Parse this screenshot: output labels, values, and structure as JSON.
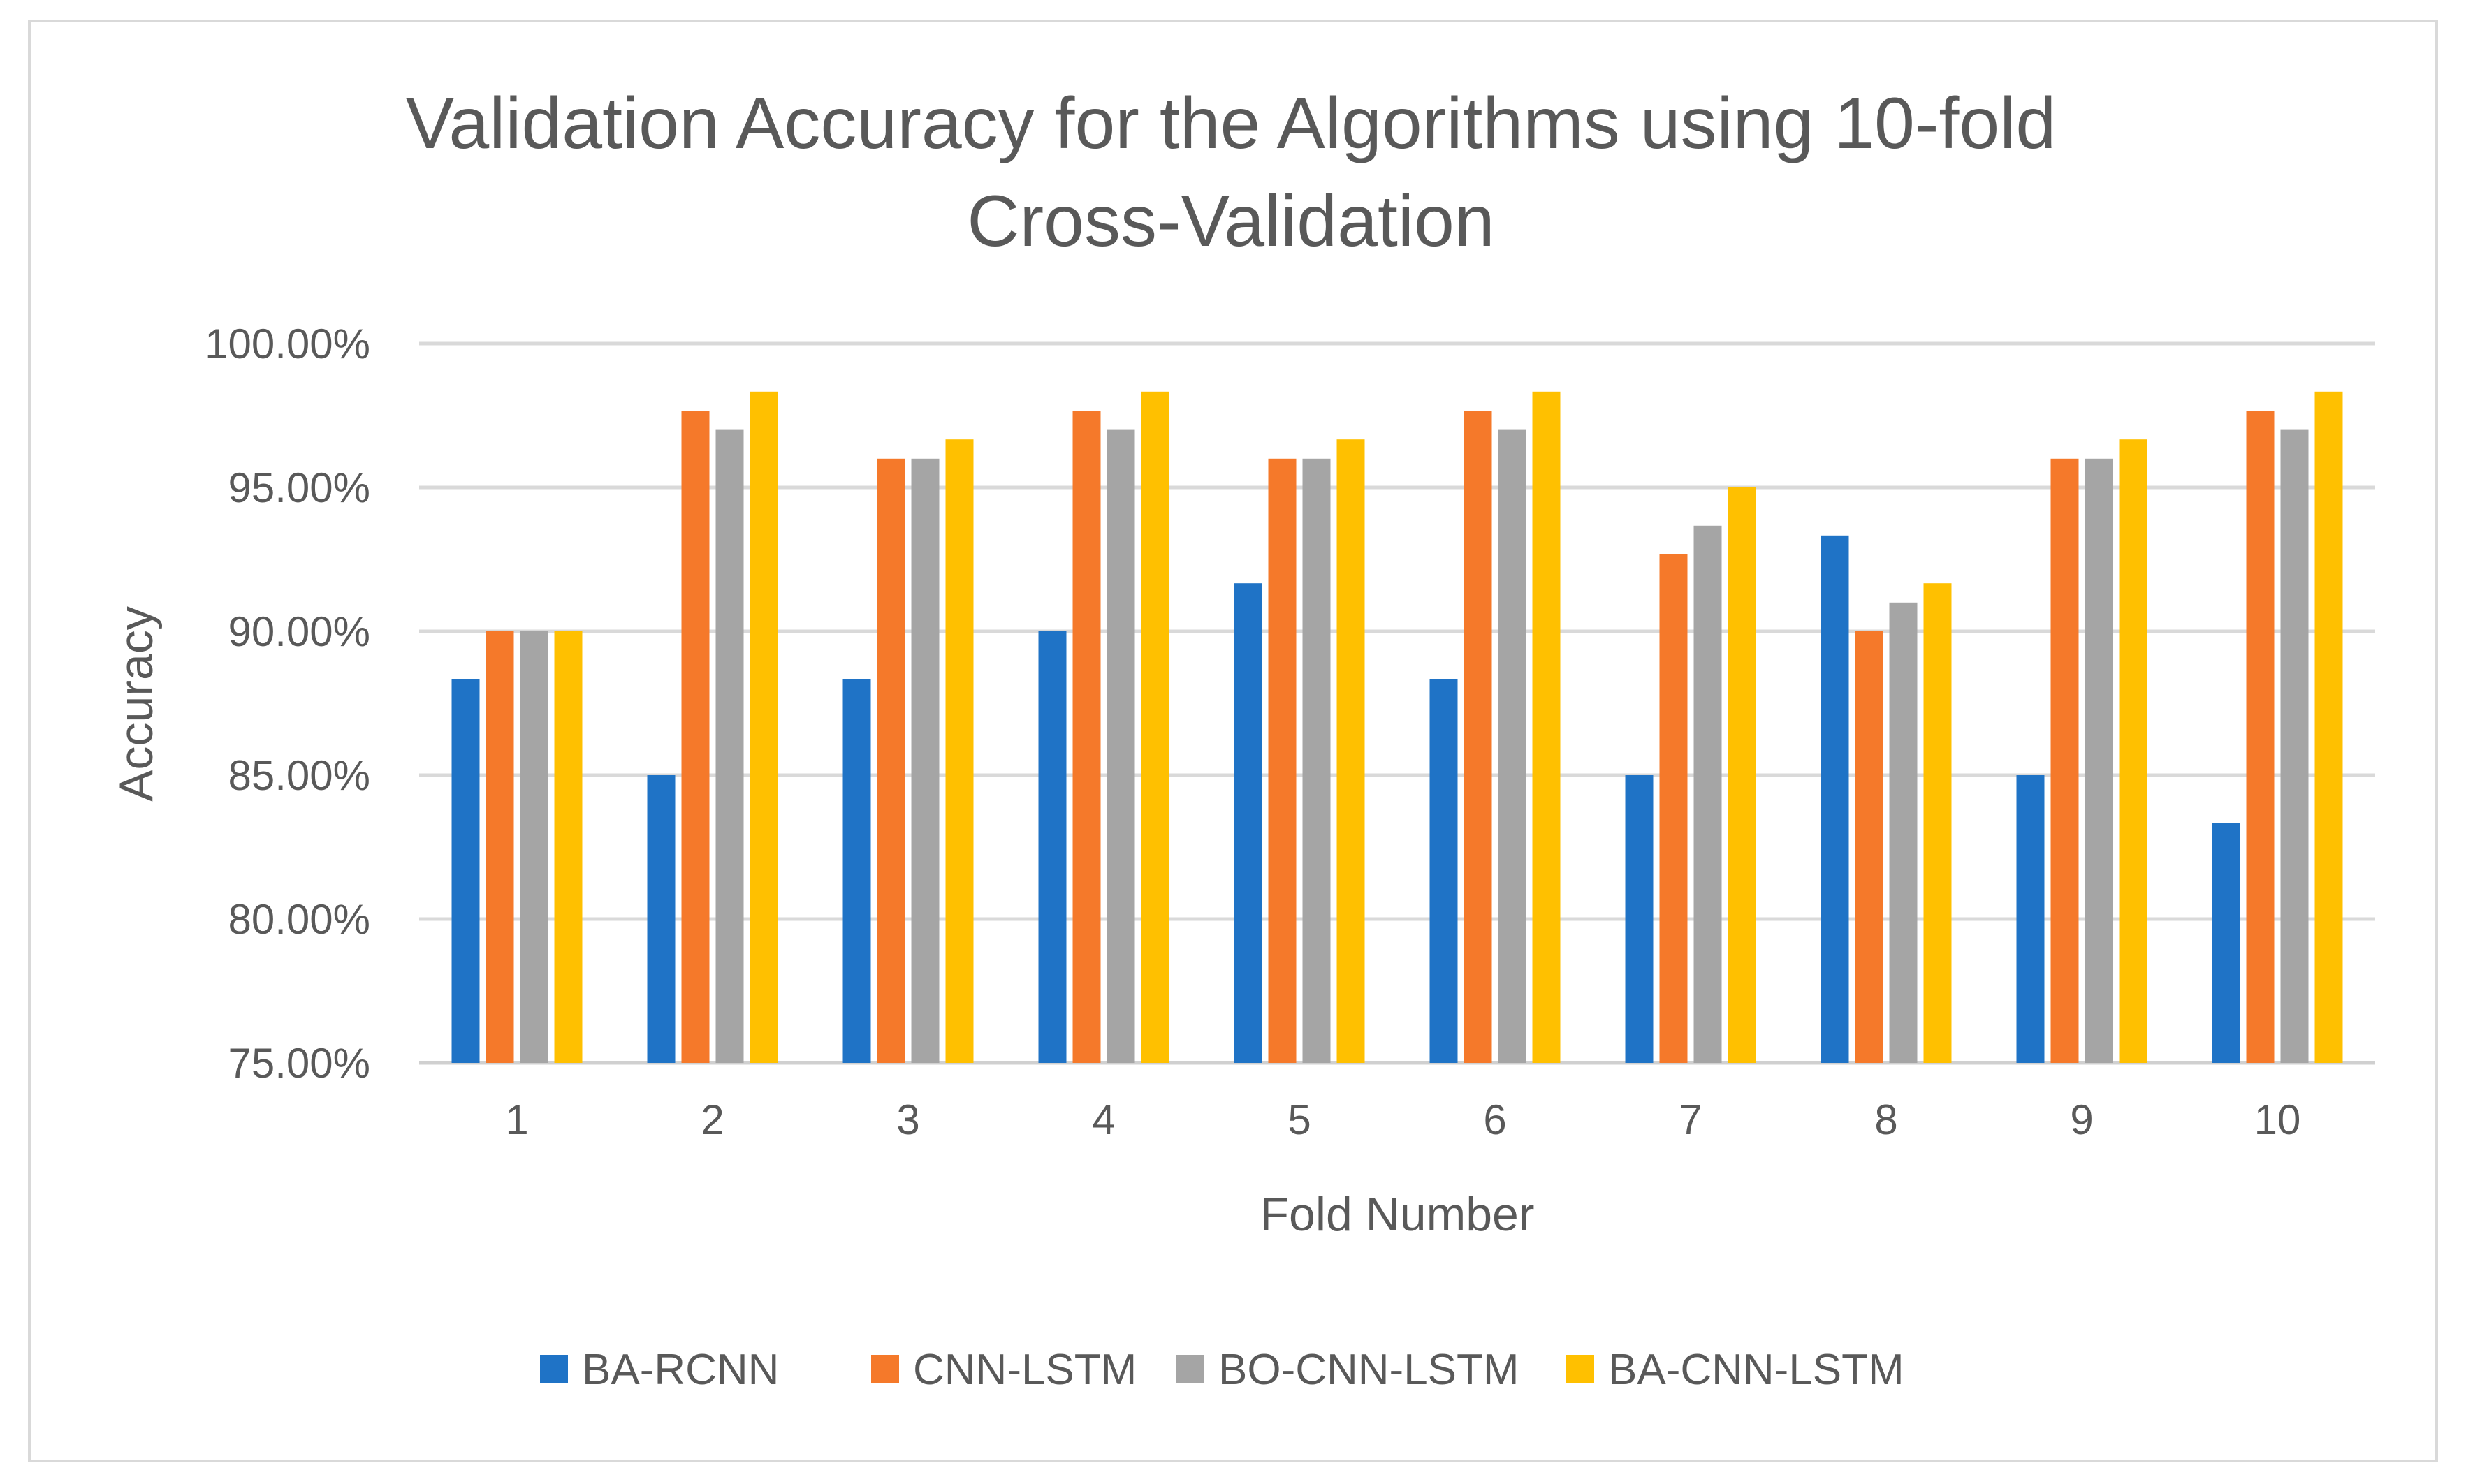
{
  "chart_data": {
    "type": "bar",
    "title": "Validation Accuracy for the Algorithms using 10-fold Cross-Validation",
    "title_lines": [
      "Validation Accuracy for the Algorithms using 10-fold",
      "Cross-Validation"
    ],
    "xlabel": "Fold Number",
    "ylabel": "Accuracy",
    "ylim": [
      75,
      100
    ],
    "ytick_values": [
      75,
      80,
      85,
      90,
      95,
      100
    ],
    "ytick_labels": [
      "75.00%",
      "80.00%",
      "85.00%",
      "90.00%",
      "95.00%",
      "100.00%"
    ],
    "grid": true,
    "legend_position": "bottom",
    "categories": [
      "1",
      "2",
      "3",
      "4",
      "5",
      "6",
      "7",
      "8",
      "9",
      "10"
    ],
    "series": [
      {
        "name": "BA-RCNN",
        "color": "#1f73c6",
        "values": [
          88.33,
          85.0,
          88.33,
          90.0,
          91.67,
          88.33,
          85.0,
          93.33,
          85.0,
          83.33
        ]
      },
      {
        "name": "CNN-LSTM",
        "color": "#f5792a",
        "values": [
          90.0,
          97.67,
          96.0,
          97.67,
          96.0,
          97.67,
          92.67,
          90.0,
          96.0,
          97.67
        ]
      },
      {
        "name": "BO-CNN-LSTM",
        "color": "#a5a5a5",
        "values": [
          90.0,
          97.0,
          96.0,
          97.0,
          96.0,
          97.0,
          93.67,
          91.0,
          96.0,
          97.0
        ]
      },
      {
        "name": "BA-CNN-LSTM",
        "color": "#ffc000",
        "values": [
          90.0,
          98.33,
          96.67,
          98.33,
          96.67,
          98.33,
          95.0,
          91.67,
          96.67,
          98.33
        ]
      }
    ]
  }
}
